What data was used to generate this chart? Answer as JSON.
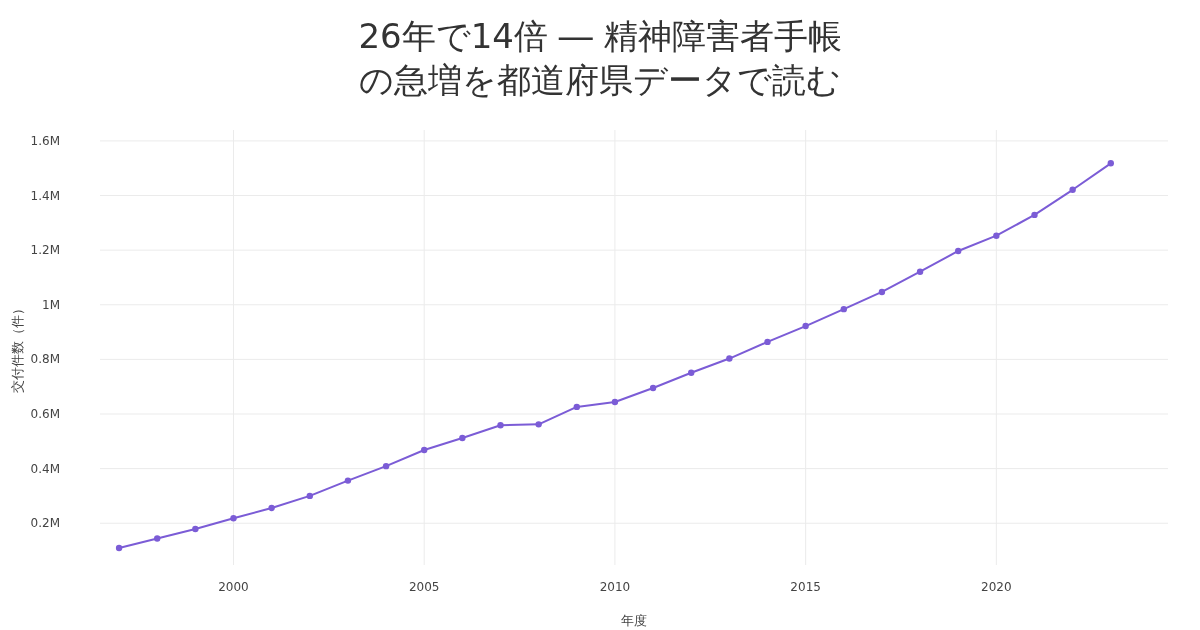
{
  "chart_data": {
    "type": "line",
    "title": "26年で14倍 ― 精神障害者手帳の急増を都道府県データで読む",
    "xlabel": "年度",
    "ylabel": "交付件数（件）",
    "x": [
      1997,
      1998,
      1999,
      2000,
      2001,
      2002,
      2003,
      2004,
      2005,
      2006,
      2007,
      2008,
      2009,
      2010,
      2011,
      2012,
      2013,
      2014,
      2015,
      2016,
      2017,
      2018,
      2019,
      2020,
      2021,
      2022,
      2023
    ],
    "series": [
      {
        "color": "#7b5cd6",
        "values": [
          109000,
          144000,
          179000,
          218000,
          256000,
          300000,
          356000,
          409000,
          468000,
          512000,
          559000,
          562000,
          626000,
          644000,
          695000,
          751000,
          803000,
          864000,
          922000,
          984000,
          1047000,
          1121000,
          1197000,
          1253000,
          1329000,
          1421000,
          1518000
        ]
      }
    ],
    "xlim": [
      1996.5,
      2024.5
    ],
    "ylim": [
      47000,
      1640000
    ],
    "xticks": [
      2000,
      2005,
      2010,
      2015,
      2020
    ],
    "yticks": [
      {
        "value": 200000,
        "label": "0.2M"
      },
      {
        "value": 400000,
        "label": "0.4M"
      },
      {
        "value": 600000,
        "label": "0.6M"
      },
      {
        "value": 800000,
        "label": "0.8M"
      },
      {
        "value": 1000000,
        "label": "1M"
      },
      {
        "value": 1200000,
        "label": "1.2M"
      },
      {
        "value": 1400000,
        "label": "1.4M"
      },
      {
        "value": 1600000,
        "label": "1.6M"
      }
    ],
    "grid": true,
    "marker": "circle",
    "line_style": "solid"
  }
}
